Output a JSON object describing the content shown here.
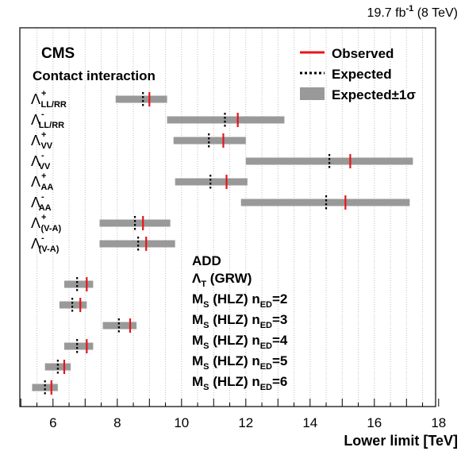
{
  "lumi": {
    "value": "19.7 fb",
    "exp": "-1",
    "energy": " (8 TeV)"
  },
  "experiment": "CMS",
  "section_contact": "Contact interaction",
  "section_add": "ADD",
  "legend": {
    "observed": "Observed",
    "expected": "Expected",
    "band": "Expected",
    "band_pm": "±1σ"
  },
  "colors": {
    "observed": "#e8141b",
    "expected": "#000000",
    "band": "#999999",
    "grid": "#bdbdbd"
  },
  "chart_data": {
    "type": "bar",
    "xlabel": "Lower limit [TeV]",
    "xlim": [
      5,
      18
    ],
    "xticks": [
      6,
      8,
      10,
      12,
      14,
      16,
      18
    ],
    "grid": true,
    "legend_position": "top-right",
    "series": [
      {
        "group": "contact",
        "label": {
          "base": "Λ",
          "sup": "+",
          "sub": "LL/RR"
        },
        "observed": 9.0,
        "expected": 8.8,
        "band": [
          7.95,
          9.55
        ]
      },
      {
        "group": "contact",
        "label": {
          "base": "Λ",
          "sup": "-",
          "sub": "LL/RR"
        },
        "observed": 11.75,
        "expected": 11.35,
        "band": [
          9.55,
          13.2
        ]
      },
      {
        "group": "contact",
        "label": {
          "base": "Λ",
          "sup": "+",
          "sub": "VV"
        },
        "observed": 11.3,
        "expected": 10.85,
        "band": [
          9.75,
          12.0
        ]
      },
      {
        "group": "contact",
        "label": {
          "base": "Λ",
          "sup": "-",
          "sub": "VV"
        },
        "observed": 15.25,
        "expected": 14.6,
        "band": [
          12.0,
          17.2
        ]
      },
      {
        "group": "contact",
        "label": {
          "base": "Λ",
          "sup": "+",
          "sub": "AA"
        },
        "observed": 11.4,
        "expected": 10.9,
        "band": [
          9.8,
          12.05
        ]
      },
      {
        "group": "contact",
        "label": {
          "base": "Λ",
          "sup": "-",
          "sub": "AA"
        },
        "observed": 15.1,
        "expected": 14.5,
        "band": [
          11.85,
          17.1
        ]
      },
      {
        "group": "contact",
        "label": {
          "base": "Λ",
          "sup": "+",
          "sub": "(V-A)"
        },
        "observed": 8.8,
        "expected": 8.55,
        "band": [
          7.45,
          9.65
        ]
      },
      {
        "group": "contact",
        "label": {
          "base": "Λ",
          "sup": "-",
          "sub": "(V-A)"
        },
        "observed": 8.9,
        "expected": 8.65,
        "band": [
          7.45,
          9.8
        ]
      },
      {
        "group": "add",
        "label": {
          "base": "Λ",
          "sub": "T",
          "rest": " (GRW)"
        },
        "observed": 7.05,
        "expected": 6.75,
        "band": [
          6.35,
          7.25
        ]
      },
      {
        "group": "add",
        "label": {
          "base": "M",
          "sub": "S",
          "rest": " (HLZ) n",
          "sub2": "ED",
          "tail": "=2"
        },
        "observed": 6.85,
        "expected": 6.6,
        "band": [
          6.2,
          7.05
        ]
      },
      {
        "group": "add",
        "label": {
          "base": "M",
          "sub": "S",
          "rest": " (HLZ) n",
          "sub2": "ED",
          "tail": "=3"
        },
        "observed": 8.4,
        "expected": 8.05,
        "band": [
          7.55,
          8.6
        ]
      },
      {
        "group": "add",
        "label": {
          "base": "M",
          "sub": "S",
          "rest": " (HLZ) n",
          "sub2": "ED",
          "tail": "=4"
        },
        "observed": 7.05,
        "expected": 6.75,
        "band": [
          6.35,
          7.25
        ]
      },
      {
        "group": "add",
        "label": {
          "base": "M",
          "sub": "S",
          "rest": " (HLZ) n",
          "sub2": "ED",
          "tail": "=5"
        },
        "observed": 6.35,
        "expected": 6.15,
        "band": [
          5.75,
          6.55
        ]
      },
      {
        "group": "add",
        "label": {
          "base": "M",
          "sub": "S",
          "rest": " (HLZ) n",
          "sub2": "ED",
          "tail": "=6"
        },
        "observed": 5.95,
        "expected": 5.75,
        "band": [
          5.35,
          6.15
        ]
      }
    ]
  }
}
